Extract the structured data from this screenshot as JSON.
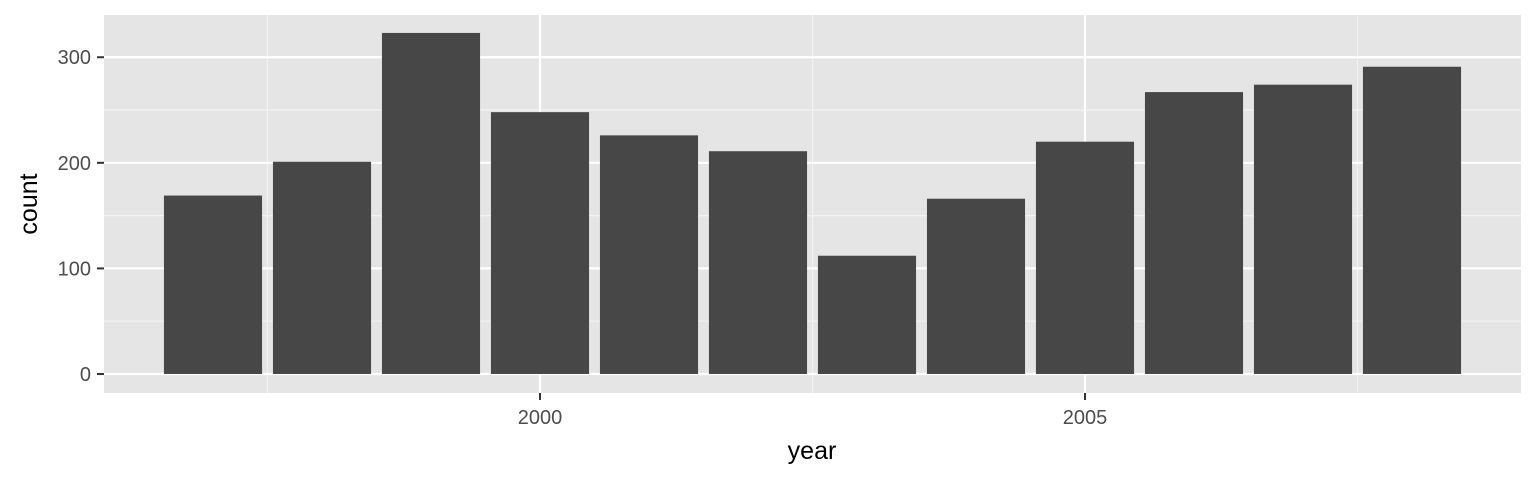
{
  "chart_data": {
    "type": "bar",
    "title": "",
    "xlabel": "year",
    "ylabel": "count",
    "x": [
      1997,
      1998,
      1999,
      2000,
      2001,
      2002,
      2003,
      2004,
      2005,
      2006,
      2007,
      2008
    ],
    "values": [
      169,
      201,
      323,
      248,
      226,
      211,
      112,
      166,
      220,
      267,
      274,
      291
    ],
    "xlim": [
      1996.0,
      2009.0
    ],
    "ylim": [
      -18,
      340
    ],
    "x_ticks": [
      2000,
      2005
    ],
    "x_tick_labels": [
      "2000",
      "2005"
    ],
    "y_ticks": [
      0,
      100,
      200,
      300
    ],
    "y_tick_labels": [
      "0",
      "100",
      "200",
      "300"
    ],
    "grid": true,
    "legend": "none",
    "colors": {
      "bar": "#474747",
      "panel_background": "#e5e5e5",
      "grid_major": "#ffffff",
      "grid_minor": "#f2f2f2",
      "tick": "#333333",
      "tick_label": "#4d4d4d",
      "axis_title": "#000000"
    }
  }
}
